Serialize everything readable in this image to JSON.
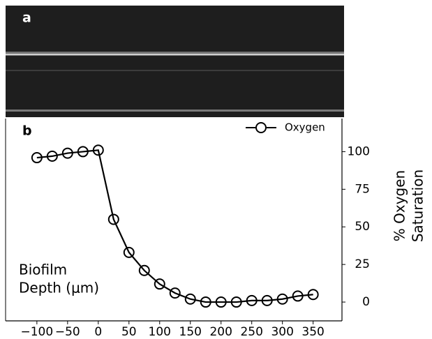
{
  "panel_a_label": "a",
  "chart_data": {
    "type": "line",
    "panel_label": "b",
    "xlabel": [
      "Biofilm",
      "Depth (μm)"
    ],
    "ylabel": [
      "% Oxygen",
      "Saturation"
    ],
    "x": [
      -100,
      -75,
      -50,
      -25,
      0,
      25,
      50,
      75,
      100,
      125,
      150,
      175,
      200,
      225,
      250,
      275,
      300,
      325,
      350
    ],
    "series": [
      {
        "name": "Oxygen",
        "color": "#000000",
        "values": [
          96,
          97,
          99,
          100,
          101,
          55,
          33,
          21,
          12,
          6,
          2,
          0,
          0,
          0,
          1,
          1,
          2,
          4,
          5
        ]
      }
    ],
    "xlim": [
      -151,
      397
    ],
    "ylim": [
      -12.5,
      122
    ],
    "xticks": [
      {
        "value": -100,
        "label": "−100"
      },
      {
        "value": -50,
        "label": "−50"
      },
      0,
      50,
      100,
      150,
      200,
      250,
      300,
      350
    ],
    "yticks": [
      0,
      25,
      50,
      75,
      100
    ],
    "y_axis_side": "right",
    "legend": "upper right",
    "grid": false
  }
}
